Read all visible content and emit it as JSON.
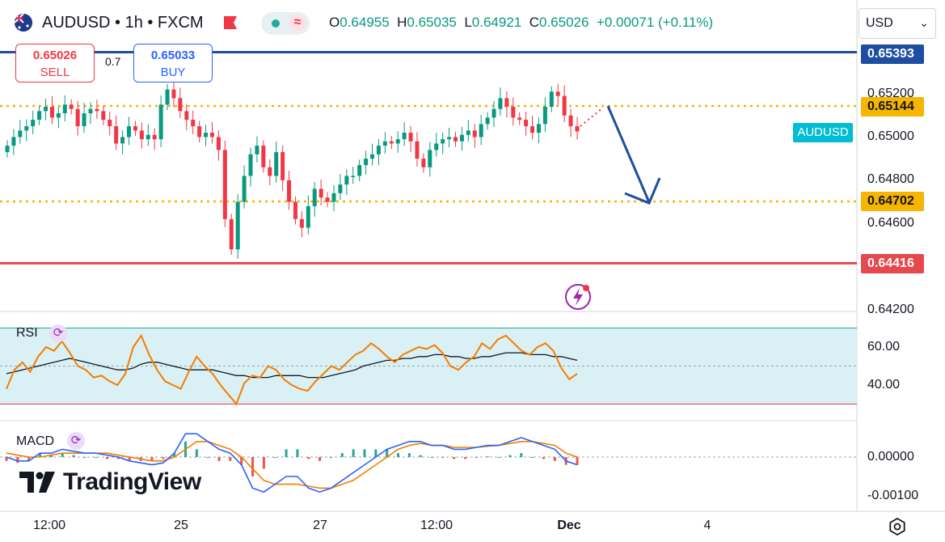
{
  "header": {
    "symbol_title": "AUDUSD • 1h • FXCM",
    "ohlc": {
      "o_label": "O",
      "o": "0.64955",
      "h_label": "H",
      "h": "0.65035",
      "l_label": "L",
      "l": "0.64921",
      "c_label": "C",
      "c": "0.65026",
      "change": "+0.00071 (+0.11%)"
    },
    "currency": "USD"
  },
  "trade": {
    "sell_price": "0.65026",
    "sell_label": "SELL",
    "spread": "0.7",
    "buy_price": "0.65033",
    "buy_label": "BUY"
  },
  "price_labels": {
    "blue_line": "0.65393",
    "yellow_upper": "0.65144",
    "yellow_lower": "0.64702",
    "red_line": "0.64416",
    "symbol_tag": "AUDUSD"
  },
  "colors": {
    "up": "#089981",
    "down": "#f23645",
    "blue_line": "#1e4ea1",
    "yellow": "#f7b500",
    "red_line": "#e5484d",
    "rsi": "#f57c00",
    "ma": "#131722",
    "macd": "#2962ff",
    "signal": "#f57c00",
    "arrow": "#1e4ea1",
    "tag": "#00bcd4"
  },
  "icons": {
    "flag": "australia-flag-icon",
    "pill": "market-status-icon",
    "bolt": "lightning-icon",
    "settings": "gear-icon",
    "refresh": "refresh-icon"
  },
  "branding": {
    "logo_text": "TradingView"
  },
  "chart_data": [
    {
      "type": "candlestick",
      "title": "AUDUSD • 1h • FXCM",
      "ylim": [
        0.642,
        0.654
      ],
      "y_ticks": [
        "0.65200",
        "0.65000",
        "0.64800",
        "0.64600",
        "0.64200"
      ],
      "x_ticks": [
        "12:00",
        "25",
        "27",
        "12:00",
        "Dec",
        "4"
      ],
      "horizontal_levels": [
        {
          "name": "resistance-blue",
          "value": 0.65393
        },
        {
          "name": "dotted-upper",
          "value": 0.65144
        },
        {
          "name": "dotted-lower",
          "value": 0.64702
        },
        {
          "name": "support-red",
          "value": 0.64416
        }
      ],
      "last_close": 0.65026,
      "projection": {
        "from": 0.65144,
        "to": 0.64702
      }
    },
    {
      "type": "line",
      "title": "RSI",
      "ylim": [
        25,
        70
      ],
      "y_ticks": [
        "60.00",
        "40.00"
      ],
      "band": [
        30,
        70
      ],
      "midline": 50,
      "series": [
        {
          "name": "RSI",
          "values": [
            38,
            48,
            52,
            47,
            55,
            60,
            58,
            63,
            57,
            50,
            48,
            44,
            45,
            42,
            40,
            46,
            60,
            66,
            56,
            48,
            42,
            40,
            38,
            47,
            55,
            50,
            46,
            40,
            35,
            30,
            41,
            45,
            44,
            50,
            48,
            43,
            40,
            38,
            37,
            42,
            46,
            50,
            48,
            52,
            56,
            58,
            62,
            59,
            55,
            52,
            56,
            58,
            60,
            59,
            61,
            57,
            50,
            48,
            52,
            55,
            62,
            59,
            64,
            66,
            62,
            58,
            56,
            60,
            62,
            58,
            49,
            43,
            46
          ]
        },
        {
          "name": "RSI MA",
          "values": [
            46,
            47,
            48,
            49,
            50,
            51,
            52,
            53,
            54,
            53,
            52,
            51,
            50,
            49,
            48,
            48,
            49,
            51,
            52,
            52,
            51,
            50,
            49,
            48,
            48,
            48,
            48,
            47,
            46,
            45,
            45,
            44,
            44,
            44,
            45,
            45,
            45,
            45,
            44,
            44,
            44,
            45,
            46,
            47,
            48,
            50,
            51,
            52,
            53,
            53,
            54,
            54,
            55,
            55,
            56,
            56,
            55,
            55,
            54,
            54,
            55,
            55,
            56,
            57,
            57,
            57,
            56,
            56,
            56,
            55,
            55,
            54,
            53
          ]
        }
      ]
    },
    {
      "type": "line",
      "title": "MACD",
      "ylim": [
        -0.00125,
        0.00075
      ],
      "y_ticks": [
        "0.00000",
        "-0.00100"
      ],
      "series": [
        {
          "name": "MACD",
          "values": [
            0,
            -0.0001,
            -0.0001,
            0.0001,
            0.0001,
            0.0002,
            0.00015,
            0.0001,
            0.0001,
            5e-05,
            0,
            -0.0001,
            -0.00015,
            -0.0002,
            -0.00015,
            0.0001,
            0.0006,
            0.0006,
            0.0004,
            0.0002,
            0.0001,
            -0.0002,
            -0.0008,
            -0.0009,
            -0.0007,
            -0.0005,
            -0.0005,
            -0.0008,
            -0.0009,
            -0.0008,
            -0.0006,
            -0.0004,
            -0.0002,
            0,
            0.0002,
            0.0003,
            0.0004,
            0.0004,
            0.0003,
            0.0003,
            0.0002,
            0.0002,
            0.00025,
            0.0003,
            0.0003,
            0.0004,
            0.0005,
            0.0004,
            0.0003,
            0.0002,
            -0.0001,
            -0.0002
          ]
        },
        {
          "name": "Signal",
          "values": [
            0.0001,
            5e-05,
            0,
            0,
            5e-05,
            0.0001,
            0.0001,
            0.0001,
            0.0001,
            0.0001,
            5e-05,
            0,
            -5e-05,
            -0.0001,
            -0.0001,
            0,
            0.0002,
            0.0004,
            0.0004,
            0.0003,
            0.0002,
            0,
            -0.0003,
            -0.0006,
            -0.0007,
            -0.0007,
            -0.0007,
            -0.00075,
            -0.0008,
            -0.0008,
            -0.0007,
            -0.0006,
            -0.0004,
            -0.0002,
            0,
            0.0002,
            0.0003,
            0.00035,
            0.0003,
            0.0003,
            0.00025,
            0.00025,
            0.00025,
            0.00028,
            0.0003,
            0.00035,
            0.0004,
            0.0004,
            0.00035,
            0.0003,
            0.0001,
            0
          ]
        }
      ]
    }
  ]
}
